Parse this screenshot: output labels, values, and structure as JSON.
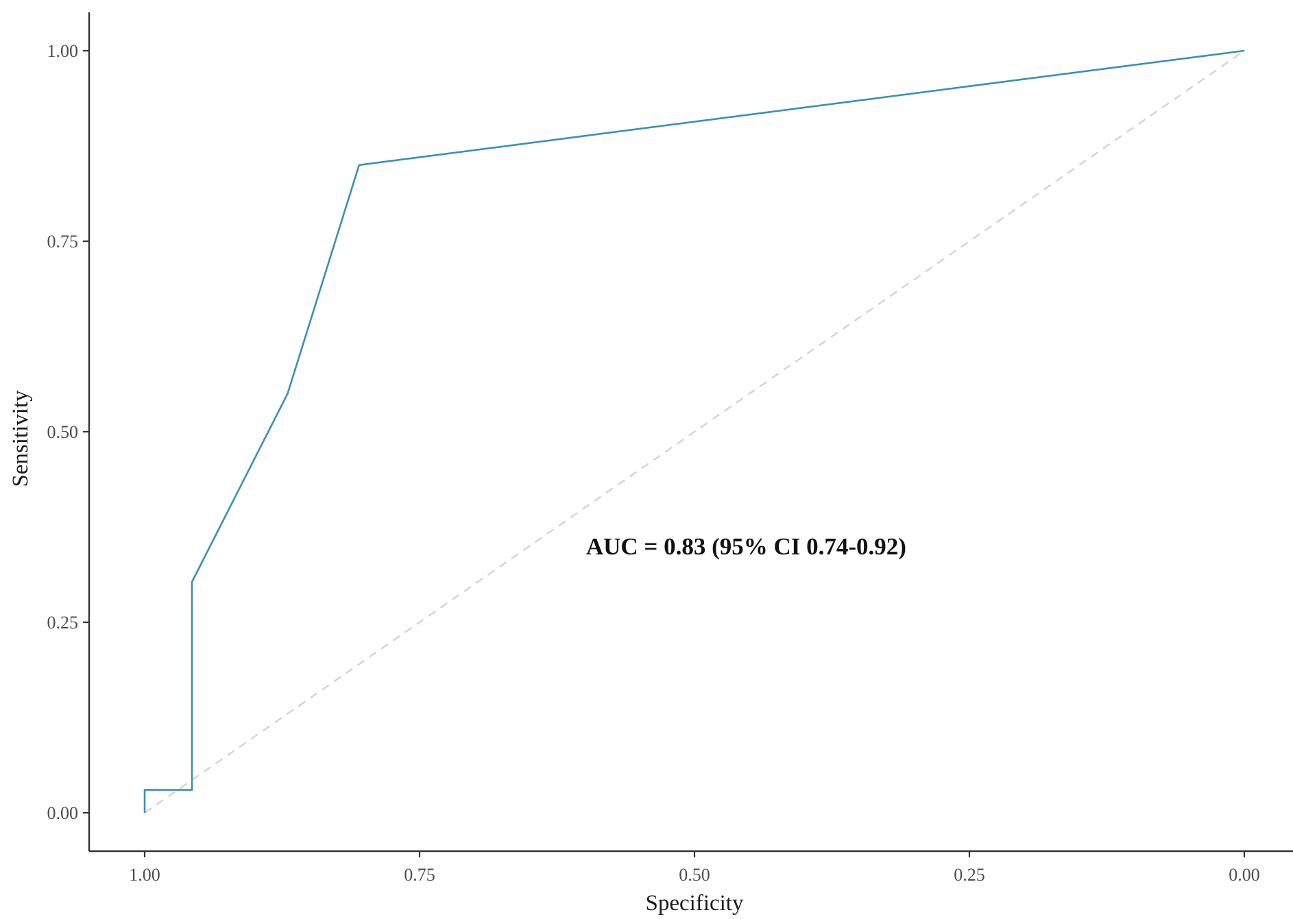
{
  "chart_data": {
    "type": "line",
    "title": "",
    "xlabel": "Specificity",
    "ylabel": "Sensitivity",
    "x_reversed": true,
    "xlim": [
      1.05,
      -0.1
    ],
    "ylim": [
      -0.05,
      1.05
    ],
    "xticks": [
      1.0,
      0.75,
      0.5,
      0.25,
      0.0
    ],
    "xtick_labels": [
      "1.00",
      "0.75",
      "0.50",
      "0.25",
      "0.00"
    ],
    "yticks": [
      0.0,
      0.25,
      0.5,
      0.75,
      1.0
    ],
    "ytick_labels": [
      "0.00",
      "0.25",
      "0.50",
      "0.75",
      "1.00"
    ],
    "grid": false,
    "series": [
      {
        "color": "#3a8fb7",
        "x": [
          1.0,
          1.0,
          0.957,
          0.957,
          0.87,
          0.805,
          0.0
        ],
        "y": [
          0.0,
          0.03,
          0.03,
          0.303,
          0.55,
          0.85,
          1.0
        ]
      }
    ],
    "reference_line": {
      "x": [
        1.0,
        0.0
      ],
      "y": [
        0.0,
        1.0
      ],
      "style": "dashed",
      "color": "#d3d3d3"
    },
    "annotations": [
      {
        "text": "AUC = 0.83 (95% CI 0.74-0.92)",
        "x": 0.4,
        "y": 0.35
      }
    ]
  }
}
